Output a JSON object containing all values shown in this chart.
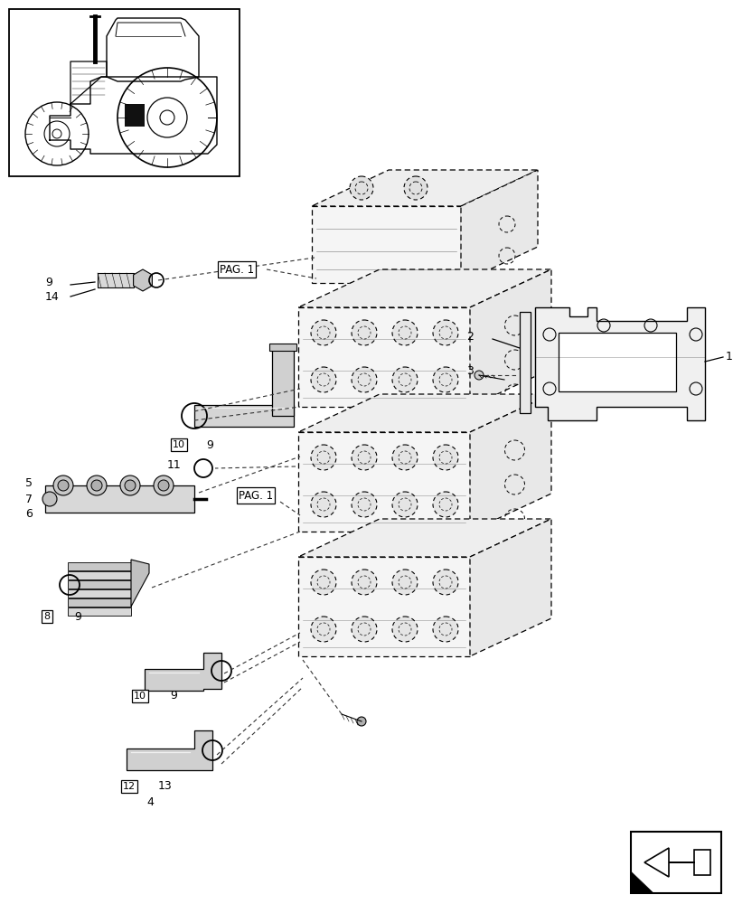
{
  "bg_color": "#ffffff",
  "fig_width": 8.12,
  "fig_height": 10.0,
  "dpi": 100,
  "lc": "#000000",
  "dc": "#555555"
}
